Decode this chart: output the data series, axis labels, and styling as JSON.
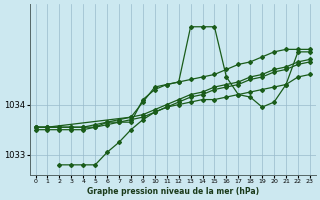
{
  "xlabel": "Graphe pression niveau de la mer (hPa)",
  "xlim": [
    -0.5,
    23.5
  ],
  "ylim": [
    1032.6,
    1036.0
  ],
  "yticks": [
    1033,
    1034
  ],
  "xticks": [
    0,
    1,
    2,
    3,
    4,
    5,
    6,
    7,
    8,
    9,
    10,
    11,
    12,
    13,
    14,
    15,
    16,
    17,
    18,
    19,
    20,
    21,
    22,
    23
  ],
  "bg_color": "#cce8f0",
  "grid_color": "#99bbcc",
  "line_color": "#1a5c1a",
  "series": [
    {
      "x": [
        0,
        1,
        2,
        3,
        4,
        5,
        6,
        7,
        8,
        9,
        10,
        11,
        12,
        13,
        14,
        15,
        16,
        17,
        18,
        19,
        20,
        21,
        22,
        23
      ],
      "y": [
        1033.55,
        1033.55,
        1033.55,
        1033.55,
        1033.55,
        1033.6,
        1033.65,
        1033.65,
        1033.65,
        1034.1,
        1034.3,
        1034.4,
        1034.45,
        1035.55,
        1035.55,
        1035.55,
        1034.55,
        1034.2,
        1034.15,
        1033.95,
        1034.05,
        1034.4,
        1035.05,
        1035.05
      ]
    },
    {
      "x": [
        0,
        1,
        2,
        3,
        4,
        5,
        6,
        7,
        8,
        9,
        10,
        11,
        12,
        13,
        14,
        15,
        16,
        17,
        18,
        19,
        20,
        21,
        22,
        23
      ],
      "y": [
        1033.55,
        1033.55,
        1033.55,
        1033.55,
        1033.55,
        1033.55,
        1033.65,
        1033.7,
        1033.75,
        1033.8,
        1033.9,
        1034.0,
        1034.1,
        1034.2,
        1034.25,
        1034.35,
        1034.4,
        1034.45,
        1034.55,
        1034.6,
        1034.7,
        1034.75,
        1034.85,
        1034.9
      ]
    },
    {
      "x": [
        0,
        1,
        2,
        3,
        4,
        5,
        6,
        7,
        8,
        9,
        10,
        11,
        12,
        13,
        14,
        15,
        16,
        17,
        18,
        19,
        20,
        21,
        22,
        23
      ],
      "y": [
        1033.5,
        1033.5,
        1033.5,
        1033.5,
        1033.5,
        1033.55,
        1033.6,
        1033.65,
        1033.7,
        1033.75,
        1033.85,
        1033.95,
        1034.05,
        1034.15,
        1034.2,
        1034.3,
        1034.35,
        1034.4,
        1034.5,
        1034.55,
        1034.65,
        1034.7,
        1034.8,
        1034.85
      ]
    },
    {
      "x": [
        2,
        3,
        4,
        5,
        6,
        7,
        8,
        9,
        10,
        11,
        12,
        13,
        14,
        15,
        16,
        17,
        18,
        19,
        20,
        21,
        22,
        23
      ],
      "y": [
        1032.8,
        1032.8,
        1032.8,
        1032.8,
        1033.05,
        1033.25,
        1033.5,
        1033.7,
        1033.85,
        1033.95,
        1034.0,
        1034.05,
        1034.1,
        1034.1,
        1034.15,
        1034.2,
        1034.25,
        1034.3,
        1034.35,
        1034.4,
        1034.55,
        1034.6
      ]
    },
    {
      "x": [
        0,
        1,
        8,
        9,
        10,
        11,
        12,
        13,
        14,
        15,
        16,
        17,
        18,
        19,
        20,
        21,
        22,
        23
      ],
      "y": [
        1033.55,
        1033.55,
        1033.75,
        1034.05,
        1034.35,
        1034.4,
        1034.45,
        1034.5,
        1034.55,
        1034.6,
        1034.7,
        1034.8,
        1034.85,
        1034.95,
        1035.05,
        1035.1,
        1035.1,
        1035.1
      ]
    }
  ]
}
